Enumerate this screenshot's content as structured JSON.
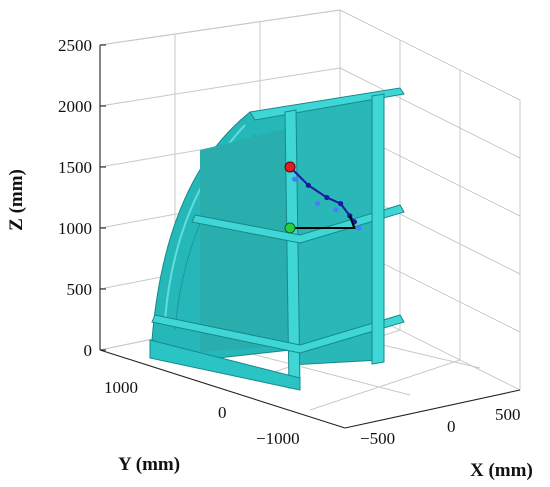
{
  "chart_data": {
    "type": "3d-scatter",
    "xlabel": "X (mm)",
    "ylabel": "Y (mm)",
    "zlabel": "Z (mm)",
    "x_ticks": [
      "−500",
      "0",
      "500"
    ],
    "y_ticks": [
      "1000",
      "0",
      "−1000"
    ],
    "z_ticks": [
      "0",
      "500",
      "1000",
      "1500",
      "2000",
      "2500"
    ],
    "zlim": [
      0,
      2500
    ],
    "grid": true,
    "series": [
      {
        "marker": "dots-and-line",
        "color": "#1a1aa0",
        "points_xyz": [
          [
            -200,
            0,
            1500
          ],
          [
            0,
            0,
            1350
          ],
          [
            200,
            0,
            1250
          ],
          [
            350,
            0,
            1200
          ],
          [
            450,
            0,
            1100
          ],
          [
            500,
            0,
            1050
          ]
        ]
      },
      {
        "marker": "dots",
        "color": "#4a7bff",
        "points_xyz": [
          [
            -150,
            0,
            1400
          ],
          [
            100,
            0,
            1200
          ],
          [
            300,
            0,
            1150
          ],
          [
            550,
            0,
            1000
          ]
        ]
      },
      {
        "marker": "line",
        "color": "#000000",
        "points_xyz": [
          [
            -200,
            0,
            1000
          ],
          [
            500,
            0,
            1000
          ],
          [
            450,
            0,
            1100
          ]
        ]
      }
    ],
    "start_point": {
      "color": "#e02020",
      "z": 1500
    },
    "end_point": {
      "color": "#2ecc40",
      "z": 1000
    },
    "structure_color": "#2ec7c7"
  }
}
